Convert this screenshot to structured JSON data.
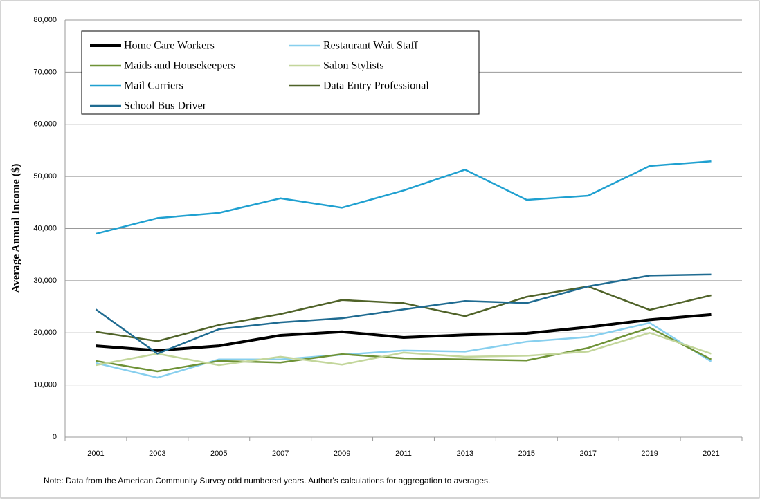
{
  "chart_data": {
    "type": "line",
    "y_label": "Average Annual Income ($)",
    "note": "Note: Data from the American Community Survey odd numbered years. Author's calculations for aggregation to averages.",
    "categories": [
      "2001",
      "2003",
      "2005",
      "2007",
      "2009",
      "2011",
      "2013",
      "2015",
      "2017",
      "2019",
      "2021"
    ],
    "ylim": [
      0,
      80000
    ],
    "yticks": [
      0,
      {
        "value": 10000,
        "label": "10,000"
      },
      {
        "value": 20000,
        "label": "20,000"
      },
      {
        "value": 30000,
        "label": "30,000"
      },
      {
        "value": 40000,
        "label": "40,000"
      },
      {
        "value": 50000,
        "label": "50,000"
      },
      {
        "value": 60000,
        "label": "60,000"
      },
      {
        "value": 70000,
        "label": "70,000"
      },
      {
        "value": 80000,
        "label": "80,000"
      }
    ],
    "grid": true,
    "series": [
      {
        "name": "Home Care Workers",
        "color": "#000000",
        "width": 4,
        "values": [
          17500,
          16600,
          17500,
          19500,
          20200,
          19100,
          19600,
          19900,
          21100,
          22500,
          23500
        ]
      },
      {
        "name": "Restaurant Wait Staff",
        "color": "#87cfee",
        "width": 2.5,
        "values": [
          14200,
          11400,
          14900,
          14900,
          15800,
          16600,
          16400,
          18300,
          19200,
          21900,
          14500
        ]
      },
      {
        "name": "Maids and Housekeepers",
        "color": "#6e9236",
        "width": 2.5,
        "values": [
          14600,
          12600,
          14600,
          14300,
          15900,
          15100,
          14900,
          14700,
          17100,
          21000,
          14900
        ]
      },
      {
        "name": "Salon Stylists",
        "color": "#c3d69b",
        "width": 2.5,
        "values": [
          13800,
          16000,
          13800,
          15400,
          13900,
          16200,
          15400,
          15600,
          16400,
          20000,
          16000
        ]
      },
      {
        "name": "Mail Carriers",
        "color": "#1fa0d0",
        "width": 2.5,
        "values": [
          39000,
          42000,
          43000,
          45800,
          44000,
          47300,
          51300,
          45500,
          46300,
          52000,
          52900
        ]
      },
      {
        "name": "Data Entry Professional",
        "color": "#4f6228",
        "width": 2.5,
        "values": [
          20200,
          18400,
          21500,
          23600,
          26300,
          25700,
          23200,
          26900,
          28900,
          24400,
          27200
        ]
      },
      {
        "name": "School Bus Driver",
        "color": "#1f6b91",
        "width": 2.5,
        "values": [
          24500,
          16000,
          20700,
          22000,
          22800,
          24500,
          26100,
          25700,
          28900,
          31000,
          31200
        ]
      }
    ]
  }
}
